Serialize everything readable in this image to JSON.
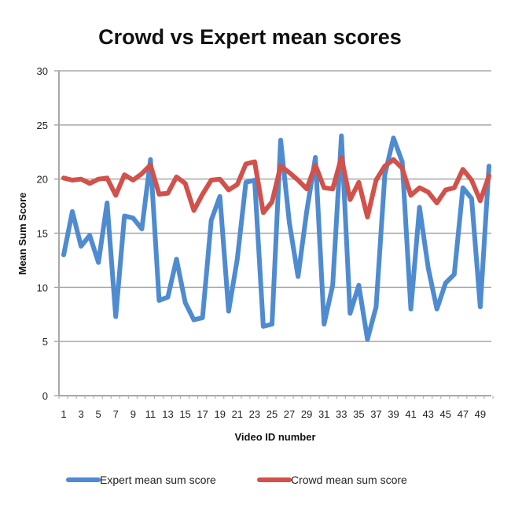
{
  "chart_data": {
    "type": "line",
    "title": "Crowd vs Expert mean scores",
    "xlabel": "Video ID number",
    "ylabel": "Mean Sum Score",
    "ylim": [
      0,
      30
    ],
    "yticks": [
      "0",
      "5",
      "10",
      "15",
      "20",
      "25",
      "30"
    ],
    "ytick_values": [
      0,
      5,
      10,
      15,
      20,
      25,
      30
    ],
    "xticks": [
      "1",
      "3",
      "5",
      "7",
      "9",
      "11",
      "13",
      "15",
      "17",
      "19",
      "21",
      "23",
      "25",
      "27",
      "29",
      "31",
      "33",
      "35",
      "37",
      "39",
      "41",
      "43",
      "45",
      "47",
      "49"
    ],
    "x": [
      1,
      2,
      3,
      4,
      5,
      6,
      7,
      8,
      9,
      10,
      11,
      12,
      13,
      14,
      15,
      16,
      17,
      18,
      19,
      20,
      21,
      22,
      23,
      24,
      25,
      26,
      27,
      28,
      29,
      30,
      31,
      32,
      33,
      34,
      35,
      36,
      37,
      38,
      39,
      40,
      41,
      42,
      43,
      44,
      45,
      46,
      47,
      48,
      49,
      50
    ],
    "grid": true,
    "legend_position": "bottom",
    "series": [
      {
        "name": "Expert mean sum score",
        "color": "#4f8bd0",
        "values": [
          13.0,
          17.0,
          13.8,
          14.8,
          12.3,
          17.8,
          7.3,
          16.6,
          16.4,
          15.4,
          21.8,
          8.8,
          9.1,
          12.6,
          8.6,
          7.0,
          7.2,
          16.2,
          18.4,
          7.8,
          12.6,
          19.7,
          19.9,
          6.4,
          6.6,
          23.6,
          16.0,
          11.0,
          17.0,
          22.0,
          6.6,
          10.2,
          24.0,
          7.6,
          10.2,
          5.2,
          8.2,
          20.4,
          23.8,
          21.6,
          8.0,
          17.4,
          11.8,
          8.0,
          10.4,
          11.2,
          19.2,
          18.2,
          8.2,
          21.2
        ]
      },
      {
        "name": "Crowd mean sum score",
        "color": "#d2514a",
        "values": [
          20.1,
          19.9,
          20.0,
          19.6,
          20.0,
          20.1,
          18.5,
          20.4,
          19.9,
          20.5,
          21.3,
          18.6,
          18.7,
          20.2,
          19.6,
          17.1,
          18.6,
          19.9,
          20.0,
          19.0,
          19.5,
          21.4,
          21.6,
          16.9,
          17.9,
          21.2,
          20.6,
          19.9,
          19.1,
          21.3,
          19.2,
          19.1,
          22.0,
          18.1,
          19.7,
          16.5,
          19.9,
          21.2,
          21.8,
          21.0,
          18.5,
          19.2,
          18.8,
          17.8,
          19.0,
          19.2,
          20.9,
          19.9,
          18.0,
          20.3
        ]
      }
    ]
  }
}
